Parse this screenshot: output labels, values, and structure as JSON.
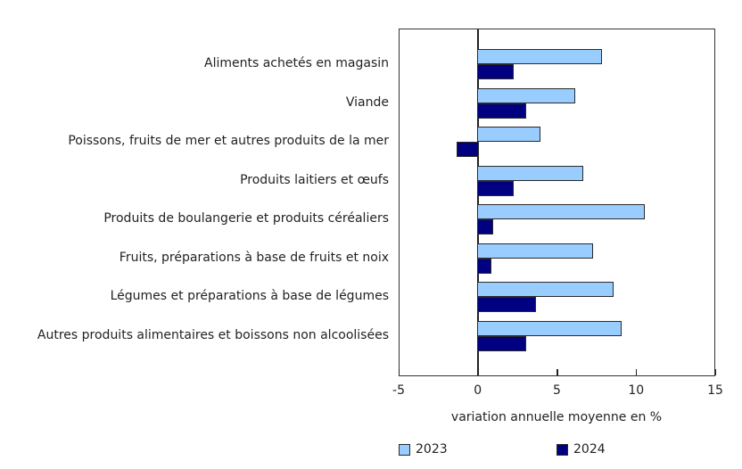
{
  "chart_data": {
    "type": "bar",
    "orientation": "horizontal",
    "title": "",
    "xlabel": "variation annuelle moyenne en %",
    "ylabel": "",
    "xlim": [
      -5,
      15
    ],
    "xticks": [
      -5,
      0,
      5,
      10,
      15
    ],
    "grid": false,
    "legend_position": "bottom",
    "categories": [
      "Aliments achetés en magasin",
      "Viande",
      "Poissons, fruits de mer et autres produits de la mer",
      "Produits laitiers et œufs",
      "Produits de boulangerie et produits céréaliers",
      "Fruits, préparations à base de fruits et noix",
      "Légumes et préparations à base de légumes",
      "Autres produits alimentaires et boissons non alcoolisées"
    ],
    "series": [
      {
        "name": "2023",
        "color": "#99ccff",
        "values": [
          7.8,
          6.1,
          3.9,
          6.6,
          10.5,
          7.2,
          8.5,
          9.0
        ]
      },
      {
        "name": "2024",
        "color": "#000080",
        "values": [
          2.2,
          3.0,
          -1.3,
          2.2,
          0.9,
          0.8,
          3.6,
          3.0
        ]
      }
    ]
  },
  "axis": {
    "tick_labels": [
      "-5",
      "0",
      "5",
      "10",
      "15"
    ],
    "title": "variation annuelle moyenne en %"
  },
  "legend": {
    "items": [
      {
        "label": "2023",
        "color": "#99ccff"
      },
      {
        "label": "2024",
        "color": "#000080"
      }
    ]
  }
}
